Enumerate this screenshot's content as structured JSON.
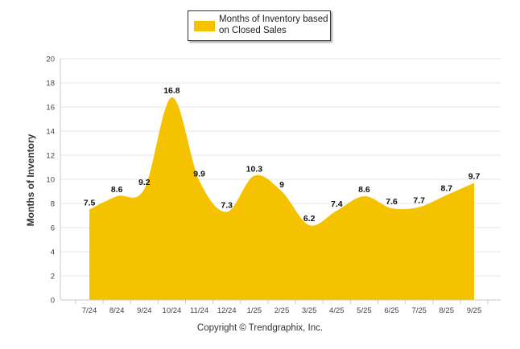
{
  "chart_data": {
    "type": "area",
    "title": "",
    "xlabel": "",
    "ylabel": "Months of Inventory",
    "ylim": [
      0,
      20
    ],
    "y_ticks": [
      0,
      2,
      4,
      6,
      8,
      10,
      12,
      14,
      16,
      18,
      20
    ],
    "grid": true,
    "legend_position": "top-center",
    "categories": [
      "7/24",
      "8/24",
      "9/24",
      "10/24",
      "11/24",
      "12/24",
      "1/25",
      "2/25",
      "3/25",
      "4/25",
      "5/25",
      "6/25",
      "7/25",
      "8/25",
      "9/25"
    ],
    "series": [
      {
        "name": "Months of Inventory based on Closed Sales",
        "color": "#F5C200",
        "values": [
          7.5,
          8.6,
          9.2,
          16.8,
          9.9,
          7.3,
          10.3,
          9,
          6.2,
          7.4,
          8.6,
          7.6,
          7.7,
          8.7,
          9.7
        ],
        "labels": [
          "7.5",
          "8.6",
          "9.2",
          "16.8",
          "9.9",
          "7.3",
          "10.3",
          "9",
          "6.2",
          "7.4",
          "8.6",
          "7.6",
          "7.7",
          "8.7",
          "9.7"
        ]
      }
    ]
  },
  "legend": {
    "label": "Months of Inventory based on Closed Sales"
  },
  "footer": {
    "copyright": "Copyright © Trendgraphix, Inc."
  },
  "colors": {
    "area_fill": "#F5C200",
    "grid": "#e6e6e6",
    "axis": "#c8c8c8"
  }
}
